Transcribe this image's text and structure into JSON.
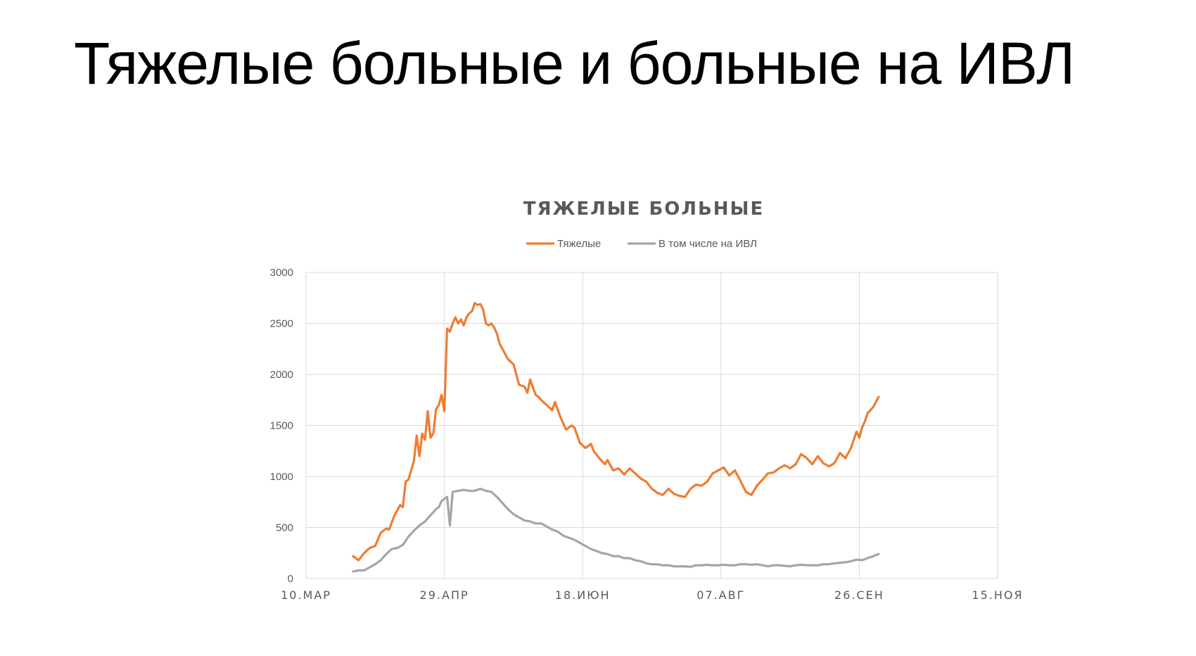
{
  "slide": {
    "title": "Тяжелые больные и больные на ИВЛ"
  },
  "colors": {
    "severe": "#ED7D31",
    "ventilator": "#A5A5A5",
    "grid": "#D9D9D9",
    "text": "#595959"
  },
  "chart_data": {
    "type": "line",
    "title": "ТЯЖЕЛЫЕ БОЛЬНЫЕ",
    "legend_position": "top",
    "grid": true,
    "xlim": [
      "2020-03-10",
      "2020-11-15"
    ],
    "ylim": [
      0,
      3000
    ],
    "x_ticks": [
      {
        "date": "2020-03-10",
        "label": "10.МАР"
      },
      {
        "date": "2020-04-29",
        "label": "29.АПР"
      },
      {
        "date": "2020-06-18",
        "label": "18.ИЮН"
      },
      {
        "date": "2020-08-07",
        "label": "07.АВГ"
      },
      {
        "date": "2020-09-26",
        "label": "26.СЕН"
      },
      {
        "date": "2020-11-15",
        "label": "15.НОЯ"
      }
    ],
    "y_ticks": [
      0,
      500,
      1000,
      1500,
      2000,
      2500,
      3000
    ],
    "series": [
      {
        "name": "Тяжелые",
        "color": "#ED7D31",
        "points": [
          [
            "2020-03-27",
            220
          ],
          [
            "2020-03-29",
            180
          ],
          [
            "2020-03-31",
            250
          ],
          [
            "2020-04-02",
            300
          ],
          [
            "2020-04-04",
            320
          ],
          [
            "2020-04-06",
            450
          ],
          [
            "2020-04-08",
            490
          ],
          [
            "2020-04-09",
            480
          ],
          [
            "2020-04-11",
            620
          ],
          [
            "2020-04-13",
            720
          ],
          [
            "2020-04-14",
            700
          ],
          [
            "2020-04-15",
            950
          ],
          [
            "2020-04-16",
            970
          ],
          [
            "2020-04-18",
            1150
          ],
          [
            "2020-04-19",
            1400
          ],
          [
            "2020-04-20",
            1200
          ],
          [
            "2020-04-21",
            1420
          ],
          [
            "2020-04-22",
            1360
          ],
          [
            "2020-04-23",
            1640
          ],
          [
            "2020-04-24",
            1380
          ],
          [
            "2020-04-25",
            1420
          ],
          [
            "2020-04-26",
            1660
          ],
          [
            "2020-04-27",
            1700
          ],
          [
            "2020-04-28",
            1800
          ],
          [
            "2020-04-29",
            1640
          ],
          [
            "2020-04-30",
            2450
          ],
          [
            "2020-05-01",
            2420
          ],
          [
            "2020-05-02",
            2500
          ],
          [
            "2020-05-03",
            2560
          ],
          [
            "2020-05-04",
            2500
          ],
          [
            "2020-05-05",
            2540
          ],
          [
            "2020-05-06",
            2480
          ],
          [
            "2020-05-07",
            2560
          ],
          [
            "2020-05-08",
            2600
          ],
          [
            "2020-05-09",
            2620
          ],
          [
            "2020-05-10",
            2700
          ],
          [
            "2020-05-11",
            2680
          ],
          [
            "2020-05-12",
            2690
          ],
          [
            "2020-05-13",
            2640
          ],
          [
            "2020-05-14",
            2500
          ],
          [
            "2020-05-15",
            2480
          ],
          [
            "2020-05-16",
            2500
          ],
          [
            "2020-05-17",
            2460
          ],
          [
            "2020-05-18",
            2400
          ],
          [
            "2020-05-19",
            2300
          ],
          [
            "2020-05-20",
            2250
          ],
          [
            "2020-05-22",
            2150
          ],
          [
            "2020-05-24",
            2100
          ],
          [
            "2020-05-26",
            1900
          ],
          [
            "2020-05-28",
            1880
          ],
          [
            "2020-05-29",
            1820
          ],
          [
            "2020-05-30",
            1950
          ],
          [
            "2020-06-01",
            1800
          ],
          [
            "2020-06-02",
            1780
          ],
          [
            "2020-06-03",
            1750
          ],
          [
            "2020-06-05",
            1700
          ],
          [
            "2020-06-07",
            1650
          ],
          [
            "2020-06-08",
            1730
          ],
          [
            "2020-06-10",
            1580
          ],
          [
            "2020-06-12",
            1460
          ],
          [
            "2020-06-14",
            1500
          ],
          [
            "2020-06-15",
            1480
          ],
          [
            "2020-06-17",
            1330
          ],
          [
            "2020-06-19",
            1280
          ],
          [
            "2020-06-21",
            1320
          ],
          [
            "2020-06-22",
            1250
          ],
          [
            "2020-06-24",
            1180
          ],
          [
            "2020-06-26",
            1120
          ],
          [
            "2020-06-27",
            1160
          ],
          [
            "2020-06-29",
            1060
          ],
          [
            "2020-07-01",
            1080
          ],
          [
            "2020-07-03",
            1020
          ],
          [
            "2020-07-05",
            1080
          ],
          [
            "2020-07-07",
            1030
          ],
          [
            "2020-07-09",
            980
          ],
          [
            "2020-07-11",
            950
          ],
          [
            "2020-07-13",
            880
          ],
          [
            "2020-07-15",
            840
          ],
          [
            "2020-07-17",
            820
          ],
          [
            "2020-07-19",
            880
          ],
          [
            "2020-07-21",
            830
          ],
          [
            "2020-07-23",
            810
          ],
          [
            "2020-07-25",
            800
          ],
          [
            "2020-07-27",
            880
          ],
          [
            "2020-07-29",
            920
          ],
          [
            "2020-07-31",
            910
          ],
          [
            "2020-08-02",
            950
          ],
          [
            "2020-08-04",
            1030
          ],
          [
            "2020-08-06",
            1060
          ],
          [
            "2020-08-08",
            1090
          ],
          [
            "2020-08-10",
            1010
          ],
          [
            "2020-08-12",
            1060
          ],
          [
            "2020-08-14",
            960
          ],
          [
            "2020-08-16",
            850
          ],
          [
            "2020-08-18",
            820
          ],
          [
            "2020-08-20",
            910
          ],
          [
            "2020-08-22",
            970
          ],
          [
            "2020-08-24",
            1030
          ],
          [
            "2020-08-26",
            1040
          ],
          [
            "2020-08-28",
            1080
          ],
          [
            "2020-08-30",
            1110
          ],
          [
            "2020-09-01",
            1080
          ],
          [
            "2020-09-03",
            1120
          ],
          [
            "2020-09-05",
            1220
          ],
          [
            "2020-09-07",
            1180
          ],
          [
            "2020-09-09",
            1120
          ],
          [
            "2020-09-11",
            1200
          ],
          [
            "2020-09-13",
            1130
          ],
          [
            "2020-09-15",
            1100
          ],
          [
            "2020-09-17",
            1130
          ],
          [
            "2020-09-19",
            1230
          ],
          [
            "2020-09-21",
            1180
          ],
          [
            "2020-09-23",
            1280
          ],
          [
            "2020-09-25",
            1440
          ],
          [
            "2020-09-26",
            1380
          ],
          [
            "2020-09-27",
            1480
          ],
          [
            "2020-09-28",
            1540
          ],
          [
            "2020-09-29",
            1620
          ],
          [
            "2020-10-01",
            1680
          ],
          [
            "2020-10-03",
            1780
          ]
        ]
      },
      {
        "name": "В том числе на ИВЛ",
        "color": "#A5A5A5",
        "points": [
          [
            "2020-03-27",
            70
          ],
          [
            "2020-03-29",
            80
          ],
          [
            "2020-03-31",
            80
          ],
          [
            "2020-04-02",
            110
          ],
          [
            "2020-04-04",
            140
          ],
          [
            "2020-04-06",
            180
          ],
          [
            "2020-04-08",
            240
          ],
          [
            "2020-04-10",
            290
          ],
          [
            "2020-04-12",
            300
          ],
          [
            "2020-04-14",
            330
          ],
          [
            "2020-04-16",
            410
          ],
          [
            "2020-04-18",
            470
          ],
          [
            "2020-04-20",
            520
          ],
          [
            "2020-04-22",
            560
          ],
          [
            "2020-04-24",
            620
          ],
          [
            "2020-04-26",
            680
          ],
          [
            "2020-04-27",
            700
          ],
          [
            "2020-04-28",
            760
          ],
          [
            "2020-04-29",
            780
          ],
          [
            "2020-04-30",
            800
          ],
          [
            "2020-05-01",
            520
          ],
          [
            "2020-05-02",
            850
          ],
          [
            "2020-05-04",
            860
          ],
          [
            "2020-05-06",
            870
          ],
          [
            "2020-05-08",
            860
          ],
          [
            "2020-05-10",
            860
          ],
          [
            "2020-05-12",
            880
          ],
          [
            "2020-05-14",
            860
          ],
          [
            "2020-05-16",
            850
          ],
          [
            "2020-05-18",
            800
          ],
          [
            "2020-05-20",
            740
          ],
          [
            "2020-05-22",
            680
          ],
          [
            "2020-05-24",
            630
          ],
          [
            "2020-05-26",
            600
          ],
          [
            "2020-05-28",
            570
          ],
          [
            "2020-05-30",
            560
          ],
          [
            "2020-06-01",
            540
          ],
          [
            "2020-06-03",
            540
          ],
          [
            "2020-06-05",
            510
          ],
          [
            "2020-06-07",
            480
          ],
          [
            "2020-06-09",
            460
          ],
          [
            "2020-06-11",
            420
          ],
          [
            "2020-06-13",
            400
          ],
          [
            "2020-06-15",
            380
          ],
          [
            "2020-06-17",
            350
          ],
          [
            "2020-06-19",
            320
          ],
          [
            "2020-06-21",
            290
          ],
          [
            "2020-06-23",
            270
          ],
          [
            "2020-06-25",
            250
          ],
          [
            "2020-06-27",
            240
          ],
          [
            "2020-06-29",
            220
          ],
          [
            "2020-07-01",
            220
          ],
          [
            "2020-07-03",
            200
          ],
          [
            "2020-07-05",
            200
          ],
          [
            "2020-07-07",
            180
          ],
          [
            "2020-07-09",
            170
          ],
          [
            "2020-07-11",
            150
          ],
          [
            "2020-07-13",
            140
          ],
          [
            "2020-07-15",
            140
          ],
          [
            "2020-07-17",
            130
          ],
          [
            "2020-07-19",
            130
          ],
          [
            "2020-07-21",
            120
          ],
          [
            "2020-07-23",
            120
          ],
          [
            "2020-07-25",
            120
          ],
          [
            "2020-07-27",
            115
          ],
          [
            "2020-07-29",
            130
          ],
          [
            "2020-07-31",
            130
          ],
          [
            "2020-08-02",
            135
          ],
          [
            "2020-08-04",
            130
          ],
          [
            "2020-08-06",
            130
          ],
          [
            "2020-08-08",
            135
          ],
          [
            "2020-08-10",
            130
          ],
          [
            "2020-08-12",
            130
          ],
          [
            "2020-08-14",
            140
          ],
          [
            "2020-08-16",
            140
          ],
          [
            "2020-08-18",
            135
          ],
          [
            "2020-08-20",
            140
          ],
          [
            "2020-08-22",
            130
          ],
          [
            "2020-08-24",
            120
          ],
          [
            "2020-08-26",
            130
          ],
          [
            "2020-08-28",
            130
          ],
          [
            "2020-08-30",
            125
          ],
          [
            "2020-09-01",
            120
          ],
          [
            "2020-09-03",
            130
          ],
          [
            "2020-09-05",
            135
          ],
          [
            "2020-09-07",
            130
          ],
          [
            "2020-09-09",
            130
          ],
          [
            "2020-09-11",
            130
          ],
          [
            "2020-09-13",
            140
          ],
          [
            "2020-09-15",
            140
          ],
          [
            "2020-09-17",
            150
          ],
          [
            "2020-09-19",
            155
          ],
          [
            "2020-09-21",
            160
          ],
          [
            "2020-09-23",
            170
          ],
          [
            "2020-09-25",
            185
          ],
          [
            "2020-09-27",
            180
          ],
          [
            "2020-09-29",
            200
          ],
          [
            "2020-10-01",
            220
          ],
          [
            "2020-10-03",
            240
          ]
        ]
      }
    ]
  }
}
